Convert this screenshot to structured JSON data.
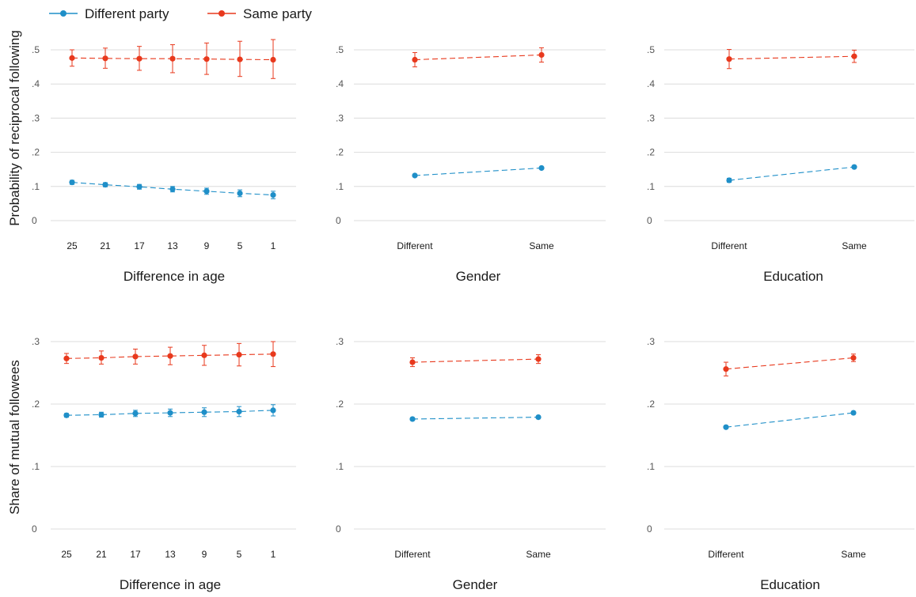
{
  "legend": [
    {
      "name": "Different party",
      "color": "#1f8fc8"
    },
    {
      "name": "Same party",
      "color": "#e8391d"
    }
  ],
  "chart_data": [
    {
      "type": "line",
      "panel": "top-left",
      "categories": [
        "25",
        "21",
        "17",
        "13",
        "9",
        "5",
        "1"
      ],
      "xlabel": "Difference in age",
      "ylabel": "Probability of reciprocal following",
      "ylim": [
        0,
        0.5
      ],
      "yticks": [
        0,
        0.1,
        0.2,
        0.3,
        0.4,
        0.5
      ],
      "yticklabels": [
        "0",
        ".1",
        ".2",
        ".3",
        ".4",
        ".5"
      ],
      "grid": true,
      "series": [
        {
          "name": "Different party",
          "values": [
            0.112,
            0.105,
            0.099,
            0.092,
            0.086,
            0.08,
            0.075
          ],
          "lower": [
            0.106,
            0.099,
            0.092,
            0.084,
            0.077,
            0.07,
            0.064
          ],
          "upper": [
            0.118,
            0.111,
            0.106,
            0.1,
            0.095,
            0.09,
            0.086
          ]
        },
        {
          "name": "Same party",
          "values": [
            0.476,
            0.475,
            0.474,
            0.474,
            0.473,
            0.472,
            0.471
          ],
          "lower": [
            0.452,
            0.446,
            0.44,
            0.433,
            0.428,
            0.422,
            0.416
          ],
          "upper": [
            0.5,
            0.505,
            0.51,
            0.515,
            0.52,
            0.525,
            0.53
          ]
        }
      ]
    },
    {
      "type": "line",
      "panel": "top-middle",
      "categories": [
        "Different",
        "Same"
      ],
      "xlabel": "Gender",
      "ylabel": "",
      "ylim": [
        0,
        0.5
      ],
      "yticks": [
        0,
        0.1,
        0.2,
        0.3,
        0.4,
        0.5
      ],
      "yticklabels": [
        "0",
        ".1",
        ".2",
        ".3",
        ".4",
        ".5"
      ],
      "grid": true,
      "series": [
        {
          "name": "Different party",
          "values": [
            0.132,
            0.154
          ],
          "lower": [
            0.129,
            0.151
          ],
          "upper": [
            0.135,
            0.157
          ]
        },
        {
          "name": "Same party",
          "values": [
            0.471,
            0.485
          ],
          "lower": [
            0.45,
            0.464
          ],
          "upper": [
            0.492,
            0.506
          ]
        }
      ]
    },
    {
      "type": "line",
      "panel": "top-right",
      "categories": [
        "Different",
        "Same"
      ],
      "xlabel": "Education",
      "ylabel": "",
      "ylim": [
        0,
        0.5
      ],
      "yticks": [
        0,
        0.1,
        0.2,
        0.3,
        0.4,
        0.5
      ],
      "yticklabels": [
        "0",
        ".1",
        ".2",
        ".3",
        ".4",
        ".5"
      ],
      "grid": true,
      "series": [
        {
          "name": "Different party",
          "values": [
            0.118,
            0.157
          ],
          "lower": [
            0.112,
            0.154
          ],
          "upper": [
            0.124,
            0.16
          ]
        },
        {
          "name": "Same party",
          "values": [
            0.473,
            0.481
          ],
          "lower": [
            0.445,
            0.463
          ],
          "upper": [
            0.501,
            0.499
          ]
        }
      ]
    },
    {
      "type": "line",
      "panel": "bottom-left",
      "categories": [
        "25",
        "21",
        "17",
        "13",
        "9",
        "5",
        "1"
      ],
      "xlabel": "Difference in age",
      "ylabel": "Share of mutual followees",
      "ylim": [
        0,
        0.3
      ],
      "yticks": [
        0,
        0.1,
        0.2,
        0.3
      ],
      "yticklabels": [
        "0",
        ".1",
        ".2",
        ".3"
      ],
      "grid": true,
      "series": [
        {
          "name": "Different party",
          "values": [
            0.182,
            0.183,
            0.185,
            0.186,
            0.187,
            0.188,
            0.19
          ],
          "lower": [
            0.179,
            0.179,
            0.18,
            0.18,
            0.18,
            0.18,
            0.181
          ],
          "upper": [
            0.185,
            0.187,
            0.19,
            0.192,
            0.194,
            0.196,
            0.199
          ]
        },
        {
          "name": "Same party",
          "values": [
            0.273,
            0.274,
            0.276,
            0.277,
            0.278,
            0.279,
            0.28
          ],
          "lower": [
            0.265,
            0.264,
            0.264,
            0.263,
            0.262,
            0.261,
            0.26
          ],
          "upper": [
            0.281,
            0.285,
            0.288,
            0.291,
            0.294,
            0.297,
            0.3
          ]
        }
      ]
    },
    {
      "type": "line",
      "panel": "bottom-middle",
      "categories": [
        "Different",
        "Same"
      ],
      "xlabel": "Gender",
      "ylabel": "",
      "ylim": [
        0,
        0.3
      ],
      "yticks": [
        0,
        0.1,
        0.2,
        0.3
      ],
      "yticklabels": [
        "0",
        ".1",
        ".2",
        ".3"
      ],
      "grid": true,
      "series": [
        {
          "name": "Different party",
          "values": [
            0.176,
            0.179
          ],
          "lower": [
            0.174,
            0.177
          ],
          "upper": [
            0.178,
            0.181
          ]
        },
        {
          "name": "Same party",
          "values": [
            0.267,
            0.272
          ],
          "lower": [
            0.26,
            0.265
          ],
          "upper": [
            0.274,
            0.279
          ]
        }
      ]
    },
    {
      "type": "line",
      "panel": "bottom-right",
      "categories": [
        "Different",
        "Same"
      ],
      "xlabel": "Education",
      "ylabel": "",
      "ylim": [
        0,
        0.3
      ],
      "yticks": [
        0,
        0.1,
        0.2,
        0.3
      ],
      "yticklabels": [
        "0",
        ".1",
        ".2",
        ".3"
      ],
      "grid": true,
      "series": [
        {
          "name": "Different party",
          "values": [
            0.163,
            0.186
          ],
          "lower": [
            0.161,
            0.184
          ],
          "upper": [
            0.165,
            0.188
          ]
        },
        {
          "name": "Same party",
          "values": [
            0.256,
            0.274
          ],
          "lower": [
            0.245,
            0.268
          ],
          "upper": [
            0.267,
            0.28
          ]
        }
      ]
    }
  ]
}
